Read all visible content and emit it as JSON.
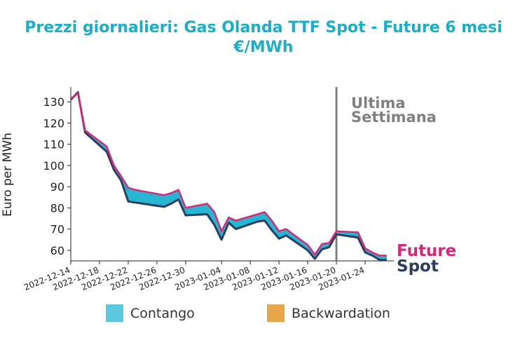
{
  "chart_data": {
    "type": "line",
    "title_line1": "Prezzi giornalieri: Gas Olanda TTF Spot - Future 6 mesi",
    "title_line2": "€/MWh",
    "ylabel": "Euro per MWh",
    "ylim": [
      55,
      137
    ],
    "yticks": [
      60,
      70,
      80,
      90,
      100,
      110,
      120,
      130
    ],
    "xlim": [
      "2022-12-14",
      "2023-01-28"
    ],
    "xticks": [
      "2022-12-14",
      "2022-12-18",
      "2022-12-22",
      "2022-12-26",
      "2022-12-30",
      "2023-01-04",
      "2023-01-08",
      "2023-01-12",
      "2023-01-16",
      "2023-01-20",
      "2023-01-24"
    ],
    "vline": {
      "date": "2023-01-20",
      "label_line1": "Ultima",
      "label_line2": "Settimana",
      "color": "#808080"
    },
    "dates": [
      "2022-12-14",
      "2022-12-15",
      "2022-12-16",
      "2022-12-19",
      "2022-12-20",
      "2022-12-21",
      "2022-12-22",
      "2022-12-23",
      "2022-12-27",
      "2022-12-28",
      "2022-12-29",
      "2022-12-30",
      "2023-01-02",
      "2023-01-03",
      "2023-01-04",
      "2023-01-05",
      "2023-01-06",
      "2023-01-09",
      "2023-01-10",
      "2023-01-11",
      "2023-01-12",
      "2023-01-13",
      "2023-01-16",
      "2023-01-17",
      "2023-01-18",
      "2023-01-19",
      "2023-01-20",
      "2023-01-23",
      "2023-01-24",
      "2023-01-25",
      "2023-01-26",
      "2023-01-27"
    ],
    "series": [
      {
        "name": "Future",
        "color": "#d6297a",
        "values": [
          131.5,
          134,
          116.5,
          109,
          100,
          95,
          89.5,
          88.5,
          86,
          87,
          88.5,
          80,
          82,
          78,
          69,
          75.5,
          74,
          77,
          78,
          74,
          69,
          70,
          62.5,
          58,
          63,
          63.5,
          69,
          68.5,
          61,
          59,
          57.5,
          57.5
        ]
      },
      {
        "name": "Spot",
        "color": "#2c3d5d",
        "values": [
          131,
          134.5,
          115.5,
          106.5,
          98,
          93,
          83,
          82.5,
          80.5,
          82,
          84,
          76.5,
          77,
          72,
          65,
          73,
          70,
          73.5,
          74,
          69.5,
          65.5,
          67,
          60,
          56,
          60.5,
          61.5,
          67.5,
          66,
          59,
          57.5,
          55.5,
          55.5
        ]
      }
    ],
    "fills": {
      "contango": {
        "label": "Contango",
        "color": "#27b6d2"
      },
      "backwardation": {
        "label": "Backwardation",
        "color": "#f0a13a"
      }
    },
    "legend": [
      {
        "label": "Contango",
        "color": "#5bc8de"
      },
      {
        "label": "Backwardation",
        "color": "#e8a64a"
      }
    ],
    "end_labels": [
      {
        "label": "Future",
        "color": "#d6297a"
      },
      {
        "label": "Spot",
        "color": "#2c3d5d"
      }
    ]
  }
}
